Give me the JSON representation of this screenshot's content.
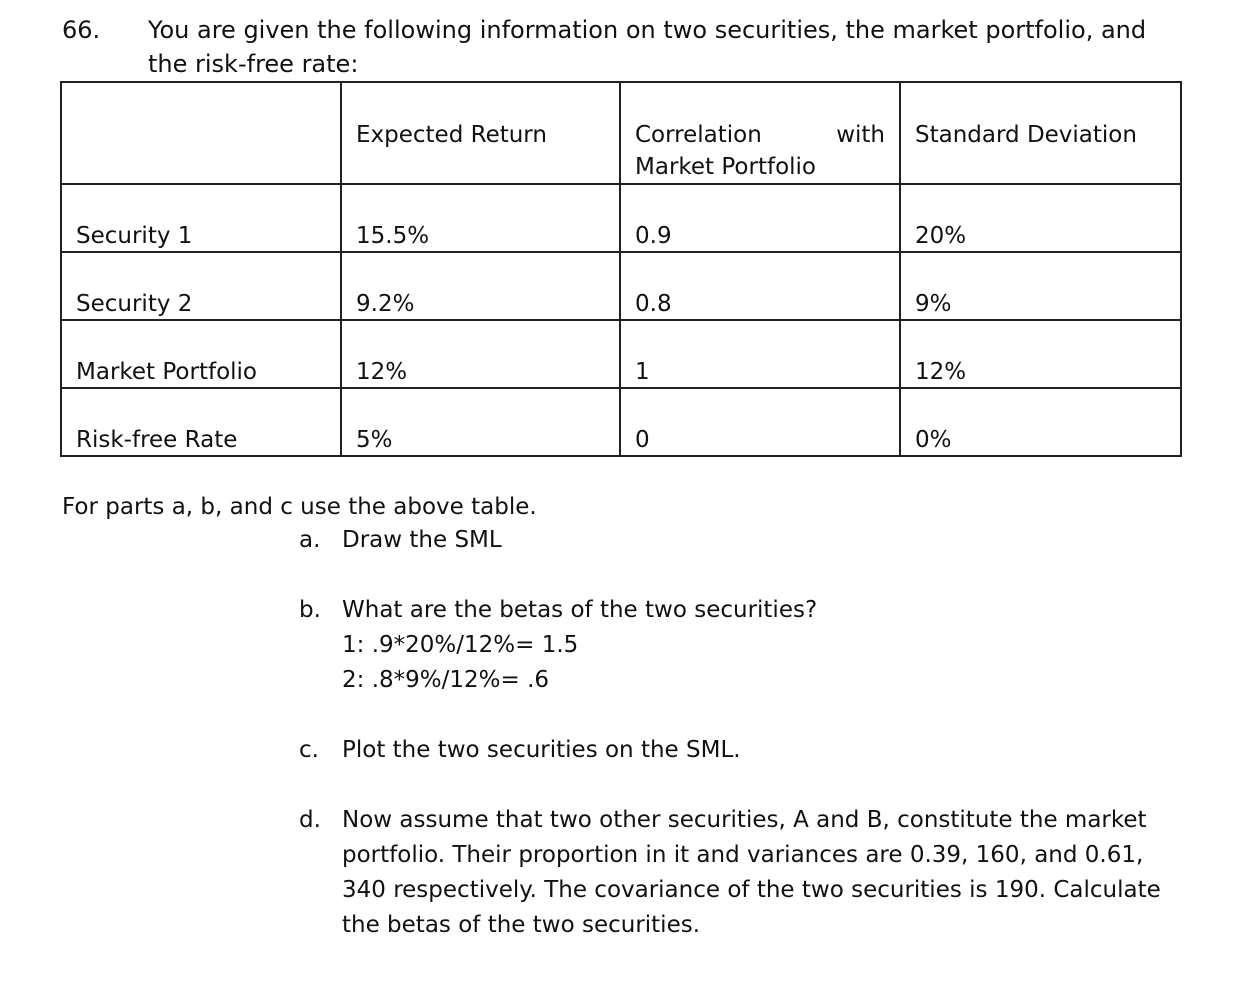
{
  "question": {
    "number": "66.",
    "intro_line1": "You are given the following information on two securities, the market portfolio, and",
    "intro_line2": "the risk-free rate:"
  },
  "table": {
    "headers": [
      "",
      "Expected Return",
      "Correlation with Market Portfolio",
      "Standard Deviation"
    ],
    "corr_header_part1": "Correlation",
    "corr_header_part2": "with",
    "corr_header_part3": "Market Portfolio",
    "rows": [
      {
        "name": "Security 1",
        "expected_return": "15.5%",
        "correlation": "0.9",
        "std_dev": "20%"
      },
      {
        "name": "Security 2",
        "expected_return": "9.2%",
        "correlation": "0.8",
        "std_dev": "9%"
      },
      {
        "name": "Market Portfolio",
        "expected_return": "12%",
        "correlation": "1",
        "std_dev": "12%"
      },
      {
        "name": "Risk-free Rate",
        "expected_return": "5%",
        "correlation": "0",
        "std_dev": "0%"
      }
    ]
  },
  "parts_intro": "For parts a, b, and c use the above table.",
  "parts": {
    "a": {
      "label": "a.",
      "text": "Draw the SML"
    },
    "b": {
      "label": "b.",
      "text": "What are the betas of the two securities?",
      "answer1": "1: .9*20%/12%= 1.5",
      "answer2": "2: .8*9%/12%= .6"
    },
    "c": {
      "label": "c.",
      "text": "Plot the two securities on the SML."
    },
    "d": {
      "label": "d.",
      "line1": "Now assume that two other securities, A and B, constitute the market",
      "line2": "portfolio. Their proportion in it and variances are 0.39, 160, and 0.61,",
      "line3": "340 respectively. The covariance of the two securities is 190. Calculate",
      "line4": "the betas of the two securities."
    }
  }
}
